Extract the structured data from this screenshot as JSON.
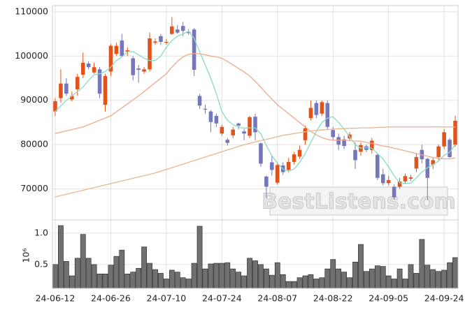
{
  "chart_data": [
    {
      "type": "candlestick",
      "categories": [
        "24-06-12",
        null,
        null,
        null,
        null,
        null,
        null,
        null,
        null,
        null,
        "24-06-26",
        null,
        null,
        null,
        null,
        null,
        null,
        null,
        null,
        null,
        "24-07-10",
        null,
        null,
        null,
        null,
        null,
        null,
        null,
        null,
        null,
        "24-07-24",
        null,
        null,
        null,
        null,
        null,
        null,
        null,
        null,
        null,
        "24-08-07",
        null,
        null,
        null,
        null,
        null,
        null,
        null,
        null,
        null,
        "24-08-22",
        null,
        null,
        null,
        null,
        null,
        null,
        null,
        null,
        null,
        "24-09-05",
        null,
        null,
        null,
        null,
        null,
        null,
        null,
        null,
        null,
        "24-09-24",
        null,
        null
      ],
      "open": [
        87500,
        90500,
        93800,
        90200,
        92500,
        95800,
        98300,
        96300,
        97000,
        89000,
        96500,
        100500,
        103500,
        101000,
        99500,
        97200,
        96500,
        97000,
        103000,
        104500,
        103000,
        105000,
        106000,
        106800,
        105500,
        106000,
        91000,
        88100,
        87500,
        86500,
        82500,
        81100,
        82100,
        84800,
        83000,
        82000,
        86300,
        80300,
        72800,
        76000,
        71400,
        75300,
        74300,
        76100,
        77300,
        81000,
        86000,
        89400,
        87000,
        89400,
        83300,
        81700,
        81200,
        81400,
        78800,
        78400,
        79600,
        78800,
        77700,
        73300,
        71300,
        70500,
        70500,
        71700,
        72300,
        74600,
        78800,
        76800,
        75500,
        77200,
        79600,
        81100,
        80000
      ],
      "high": [
        90500,
        97000,
        95000,
        92000,
        96000,
        100800,
        98800,
        98500,
        97500,
        96000,
        102700,
        103000,
        105000,
        102000,
        100000,
        98000,
        97500,
        105300,
        104000,
        105000,
        103800,
        108800,
        107000,
        107700,
        106000,
        106300,
        91500,
        89000,
        87800,
        87000,
        84500,
        81500,
        84000,
        85000,
        83500,
        86500,
        87000,
        80500,
        73000,
        77500,
        76000,
        76000,
        77000,
        78300,
        79800,
        84300,
        90000,
        90000,
        90000,
        90000,
        84000,
        82500,
        82000,
        82800,
        80500,
        80500,
        80000,
        81500,
        78000,
        74500,
        73000,
        71000,
        72500,
        73500,
        73200,
        78000,
        80000,
        77000,
        77000,
        80000,
        83500,
        81500,
        86500
      ],
      "low": [
        86500,
        89500,
        91000,
        89800,
        91000,
        95000,
        97000,
        96000,
        90500,
        87500,
        95500,
        100000,
        99800,
        100000,
        94500,
        94000,
        96000,
        96500,
        102500,
        102500,
        102600,
        104800,
        105000,
        104500,
        104800,
        95500,
        88000,
        87000,
        82800,
        84000,
        82000,
        79800,
        81500,
        83500,
        81000,
        81500,
        81000,
        75000,
        68000,
        73000,
        71000,
        73200,
        73800,
        75500,
        76800,
        80000,
        85500,
        86000,
        86500,
        83500,
        81000,
        78800,
        79000,
        81000,
        74500,
        77500,
        78300,
        78000,
        72000,
        70800,
        70800,
        67500,
        70000,
        71200,
        71800,
        73800,
        75800,
        67500,
        74500,
        76500,
        79000,
        77000,
        79500
      ],
      "close": [
        89800,
        93800,
        91500,
        91000,
        95300,
        98500,
        97500,
        97500,
        91500,
        95500,
        102300,
        102300,
        100000,
        101300,
        95700,
        96900,
        97000,
        104000,
        103300,
        103200,
        103200,
        106700,
        105300,
        105700,
        105200,
        96900,
        88800,
        87900,
        85100,
        84800,
        84000,
        80400,
        83400,
        84300,
        82500,
        86200,
        82800,
        75700,
        70500,
        74300,
        75400,
        73800,
        76100,
        77800,
        78800,
        83700,
        88300,
        86700,
        89600,
        84000,
        81700,
        80000,
        79700,
        82300,
        76500,
        79900,
        78800,
        80900,
        72500,
        71300,
        72000,
        68100,
        71700,
        72900,
        72600,
        77200,
        76700,
        72500,
        76500,
        79600,
        82800,
        77200,
        85400
      ],
      "up_color": "#e0541c",
      "down_color": "#7676bc",
      "series": [
        {
          "color": "#86dcc2",
          "values": [
            87500,
            88800,
            90000,
            91000,
            92000,
            93000,
            94500,
            95800,
            96000,
            96500,
            97500,
            99000,
            99800,
            101000,
            101000,
            100300,
            99500,
            99000,
            99000,
            100000,
            102000,
            103500,
            104500,
            105000,
            105600,
            104000,
            101000,
            98000,
            95000,
            91500,
            87500,
            85500,
            84500,
            84000,
            83700,
            83800,
            83800,
            82500,
            79800,
            77500,
            75800,
            74500,
            74000,
            74500,
            76000,
            78000,
            80500,
            83000,
            85000,
            86000,
            86300,
            85000,
            83500,
            81800,
            80000,
            79200,
            79300,
            79200,
            78000,
            76800,
            75000,
            73000,
            71400,
            71200,
            71300,
            72500,
            73800,
            74800,
            75500,
            76300,
            77600,
            78300,
            80000
          ]
        },
        {
          "color": "#eeaa8a",
          "values": [
            82500,
            82800,
            83100,
            83400,
            83700,
            84000,
            84500,
            85000,
            85500,
            86000,
            86500,
            87400,
            88300,
            89200,
            90100,
            91000,
            92000,
            93000,
            94000,
            95000,
            96000,
            97500,
            98800,
            99800,
            100400,
            100600,
            100500,
            100300,
            100000,
            99800,
            99500,
            98800,
            98000,
            97200,
            96400,
            95500,
            94300,
            93000,
            91600,
            90300,
            89000,
            88000,
            87000,
            86000,
            85000,
            84000,
            83000,
            82200,
            81600,
            81200,
            81000,
            81000,
            81000,
            80900,
            80800,
            80800,
            80500,
            80300,
            80000,
            79700,
            79500,
            79200,
            78900,
            78600,
            78300,
            78000,
            77700,
            77400,
            77100,
            76900,
            76800,
            76800,
            77000
          ]
        },
        {
          "color": "#e8b690",
          "values": [
            68200,
            68500,
            68800,
            69100,
            69400,
            69700,
            70000,
            70300,
            70600,
            70900,
            71200,
            71500,
            71800,
            72100,
            72400,
            72700,
            73000,
            73300,
            73600,
            74000,
            74400,
            74800,
            75200,
            75600,
            76000,
            76400,
            76800,
            77200,
            77600,
            78000,
            78400,
            78800,
            79200,
            79600,
            80000,
            80300,
            80600,
            80900,
            81200,
            81500,
            81800,
            82100,
            82300,
            82500,
            82700,
            82900,
            83100,
            83200,
            83300,
            83400,
            83500,
            83600,
            83600,
            83700,
            83700,
            83800,
            83800,
            83800,
            83900,
            83900,
            84000,
            84000,
            84000,
            84000,
            84000,
            84000,
            84000,
            84000,
            84000,
            84000,
            84000,
            84000,
            84000
          ]
        }
      ],
      "ylim": [
        63000,
        111400
      ],
      "yticks": [
        70000,
        80000,
        90000,
        100000,
        110000
      ],
      "grid": true,
      "watermark": "BestListens.com"
    },
    {
      "type": "bar",
      "values": [
        0.5,
        1.12,
        0.55,
        0.32,
        0.6,
        0.98,
        0.6,
        0.5,
        0.35,
        0.35,
        0.49,
        0.63,
        0.73,
        0.35,
        0.38,
        0.44,
        0.78,
        0.52,
        0.42,
        0.36,
        0.27,
        0.41,
        0.38,
        0.29,
        0.27,
        0.52,
        1.11,
        0.43,
        0.51,
        0.52,
        0.52,
        0.53,
        0.43,
        0.38,
        0.32,
        0.6,
        0.56,
        0.5,
        0.43,
        0.33,
        0.53,
        0.34,
        0.23,
        0.23,
        0.29,
        0.32,
        0.34,
        0.27,
        0.29,
        0.43,
        0.58,
        0.43,
        0.38,
        0.29,
        0.54,
        0.82,
        0.39,
        0.43,
        0.48,
        0.47,
        0.32,
        0.27,
        0.43,
        0.27,
        0.5,
        0.36,
        0.9,
        0.49,
        0.42,
        0.39,
        0.41,
        0.53,
        0.61
      ],
      "color": "#707070",
      "ylim": [
        0.12,
        1.21
      ],
      "yticks": [
        0.5,
        {
          "value": 1,
          "label": "1.0"
        }
      ],
      "grid": true,
      "multiplier": "10⁶"
    }
  ]
}
